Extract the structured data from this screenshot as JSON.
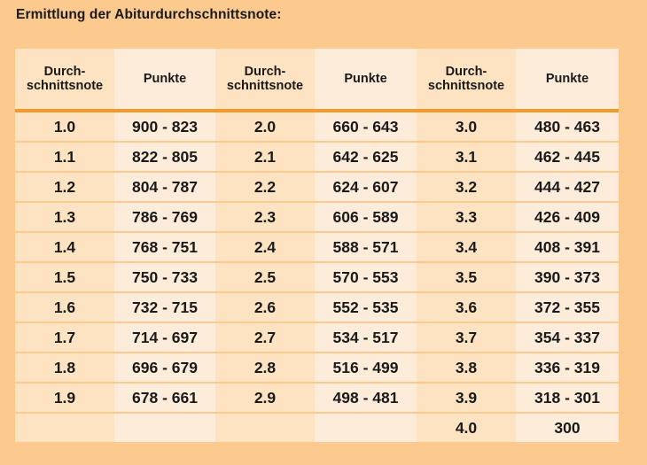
{
  "title": "Ermittlung der Abiturdurchschnittsnote:",
  "headers": [
    {
      "line1": "Durch-",
      "line2": "schnittsnote"
    },
    {
      "line1": "Punkte",
      "line2": ""
    },
    {
      "line1": "Durch-",
      "line2": "schnittsnote"
    },
    {
      "line1": "Punkte",
      "line2": ""
    },
    {
      "line1": "Durch-",
      "line2": "schnittsnote"
    },
    {
      "line1": "Punkte",
      "line2": ""
    }
  ],
  "rows": [
    [
      "1.0",
      "900 - 823",
      "2.0",
      "660 - 643",
      "3.0",
      "480 - 463"
    ],
    [
      "1.1",
      "822 - 805",
      "2.1",
      "642 - 625",
      "3.1",
      "462 - 445"
    ],
    [
      "1.2",
      "804 - 787",
      "2.2",
      "624 - 607",
      "3.2",
      "444 - 427"
    ],
    [
      "1.3",
      "786 - 769",
      "2.3",
      "606 - 589",
      "3.3",
      "426 - 409"
    ],
    [
      "1.4",
      "768 - 751",
      "2.4",
      "588 - 571",
      "3.4",
      "408 - 391"
    ],
    [
      "1.5",
      "750 - 733",
      "2.5",
      "570 - 553",
      "3.5",
      "390 - 373"
    ],
    [
      "1.6",
      "732 - 715",
      "2.6",
      "552 - 535",
      "3.6",
      "372 - 355"
    ],
    [
      "1.7",
      "714 - 697",
      "2.7",
      "534 - 517",
      "3.7",
      "354 - 337"
    ],
    [
      "1.8",
      "696 - 679",
      "2.8",
      "516 - 499",
      "3.8",
      "336 - 319"
    ],
    [
      "1.9",
      "678 - 661",
      "2.9",
      "498 - 481",
      "3.9",
      "318 - 301"
    ],
    [
      "",
      "",
      "",
      "",
      "4.0",
      "300"
    ]
  ],
  "colors": {
    "page_background": "#fcc98f",
    "header_rule": "#f39a2a",
    "shade_a": "#fde3c2",
    "shade_b": "#fdecd9"
  }
}
